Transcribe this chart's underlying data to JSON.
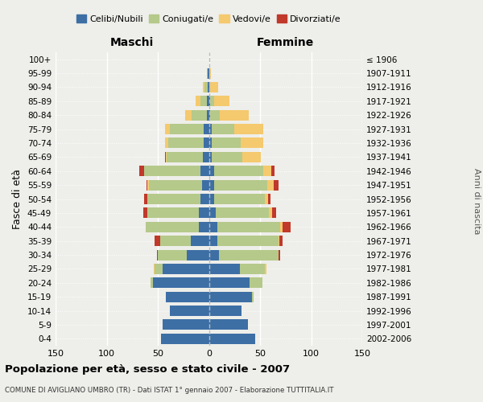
{
  "age_groups": [
    "0-4",
    "5-9",
    "10-14",
    "15-19",
    "20-24",
    "25-29",
    "30-34",
    "35-39",
    "40-44",
    "45-49",
    "50-54",
    "55-59",
    "60-64",
    "65-69",
    "70-74",
    "75-79",
    "80-84",
    "85-89",
    "90-94",
    "95-99",
    "100+"
  ],
  "birth_years": [
    "2002-2006",
    "1997-2001",
    "1992-1996",
    "1987-1991",
    "1982-1986",
    "1977-1981",
    "1972-1976",
    "1967-1971",
    "1962-1966",
    "1957-1961",
    "1952-1956",
    "1947-1951",
    "1942-1946",
    "1937-1941",
    "1932-1936",
    "1927-1931",
    "1922-1926",
    "1917-1921",
    "1912-1916",
    "1907-1911",
    "≤ 1906"
  ],
  "maschi": {
    "celibi": [
      47,
      45,
      38,
      42,
      55,
      45,
      22,
      18,
      10,
      10,
      8,
      7,
      8,
      6,
      5,
      5,
      2,
      2,
      1,
      1,
      0
    ],
    "coniugati": [
      0,
      0,
      0,
      0,
      2,
      8,
      28,
      30,
      52,
      50,
      52,
      52,
      55,
      35,
      35,
      33,
      15,
      6,
      3,
      1,
      0
    ],
    "vedovi": [
      0,
      0,
      0,
      0,
      0,
      1,
      0,
      0,
      0,
      0,
      0,
      1,
      0,
      1,
      3,
      5,
      6,
      5,
      2,
      0,
      0
    ],
    "divorziati": [
      0,
      0,
      0,
      0,
      0,
      0,
      1,
      5,
      0,
      4,
      3,
      1,
      5,
      1,
      0,
      0,
      0,
      0,
      0,
      0,
      0
    ]
  },
  "femmine": {
    "nubili": [
      45,
      38,
      32,
      42,
      40,
      30,
      10,
      8,
      8,
      7,
      5,
      5,
      5,
      3,
      3,
      3,
      1,
      1,
      0,
      0,
      0
    ],
    "coniugate": [
      0,
      0,
      0,
      2,
      12,
      25,
      58,
      60,
      62,
      52,
      50,
      52,
      48,
      30,
      28,
      22,
      10,
      4,
      1,
      0,
      0
    ],
    "vedove": [
      0,
      0,
      0,
      0,
      0,
      1,
      0,
      1,
      2,
      3,
      3,
      6,
      8,
      18,
      22,
      28,
      28,
      15,
      8,
      2,
      0
    ],
    "divorziate": [
      0,
      0,
      0,
      0,
      0,
      0,
      2,
      3,
      8,
      4,
      2,
      5,
      3,
      0,
      0,
      0,
      0,
      0,
      0,
      0,
      0
    ]
  },
  "colors": {
    "celibi_nubili": "#3d6fa5",
    "coniugati": "#b5c98a",
    "vedovi": "#f5c96e",
    "divorziati": "#c0392b"
  },
  "title": "Popolazione per età, sesso e stato civile - 2007",
  "subtitle": "COMUNE DI AVIGLIANO UMBRO (TR) - Dati ISTAT 1° gennaio 2007 - Elaborazione TUTTITALIA.IT",
  "header_maschi": "Maschi",
  "header_femmine": "Femmine",
  "ylabel_left": "Fasce di età",
  "ylabel_right": "Anni di nascita",
  "xlim": 150,
  "legend_labels": [
    "Celibi/Nubili",
    "Coniugati/e",
    "Vedovi/e",
    "Divorziati/e"
  ],
  "bg_color": "#eeeeea",
  "grid_color": "#ffffff"
}
